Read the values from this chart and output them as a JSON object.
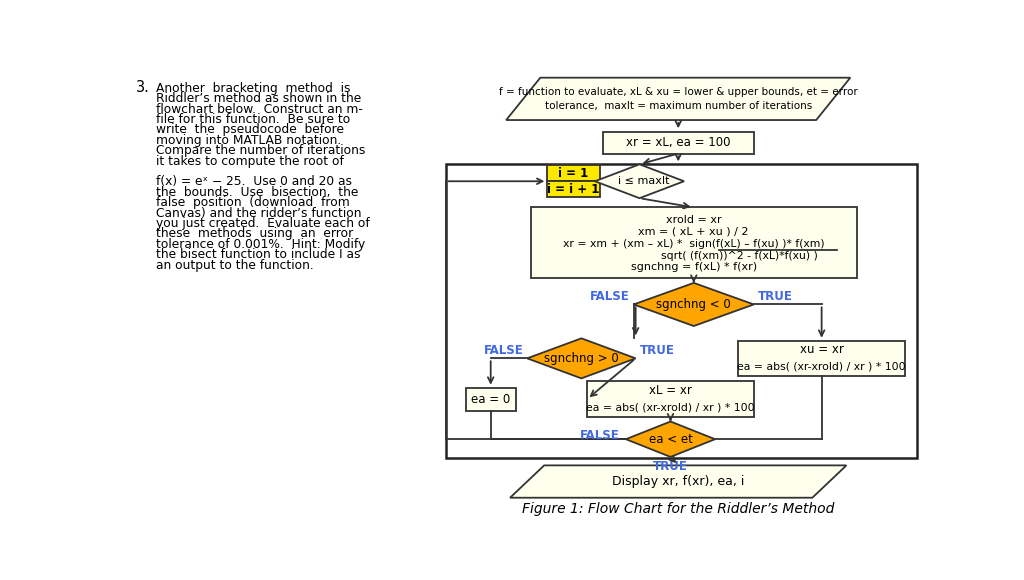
{
  "bg_color": "#ffffff",
  "light_yellow": "#FFFFEE",
  "yellow_fill": "#FFE800",
  "orange_fill": "#FFA500",
  "border_color": "#000000",
  "blue_text": "#4169E1",
  "fig_caption": "Figure 1: Flow Chart for the Riddler’s Method",
  "para1_line1": "f = function to evaluate, xL & xu = lower & upper bounds, et = error",
  "para1_line2": "tolerance,  maxIt = maximum number of iterations",
  "rect1_text": "xr = xL, ea = 100",
  "loop_label1": "i = 1",
  "loop_label2": "i = i + 1",
  "loop_diamond": "i ≤ maxIt",
  "comp_lines": [
    "xrold = xr",
    "xm = ( xL + xu ) / 2",
    "xr = xm + (xm – xL) *  sign(f(xL) – f(xu) )* f(xm)",
    "                          sqrt( (f(xm))^2 - f(xL)*f(xu) )",
    "sgnchng = f(xL) * f(xr)"
  ],
  "d1_text": "sgnchng < 0",
  "d2_text": "sgnchng > 0",
  "xu_line1": "xu = xr",
  "xu_line2": "ea = abs( (xr-xrold) / xr ) * 100",
  "ea0_text": "ea = 0",
  "xl_line1": "xL = xr",
  "xl_line2": "ea = abs( (xr-xrold) / xr ) * 100",
  "d3_text": "ea < et",
  "para2_text": "Display xr, f(xr), ea, i",
  "false_color": "#4169E1",
  "true_color": "#4169E1"
}
